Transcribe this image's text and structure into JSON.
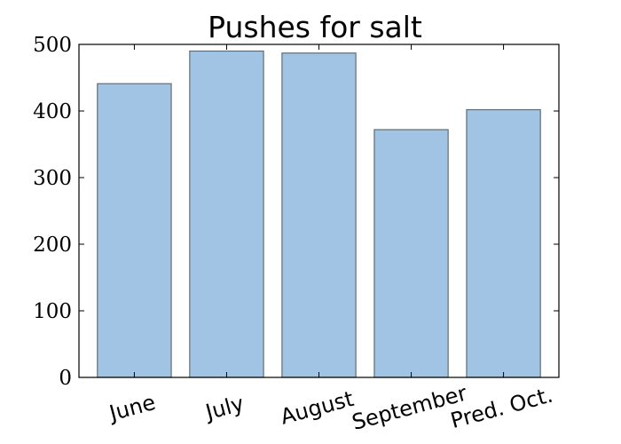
{
  "chart_data": {
    "type": "bar",
    "title": "Pushes for salt",
    "categories": [
      "June",
      "July",
      "August",
      "September",
      "Pred. Oct."
    ],
    "values": [
      441,
      490,
      487,
      372,
      402
    ],
    "ylim": [
      0,
      500
    ],
    "yticks": [
      0,
      100,
      200,
      300,
      400,
      500
    ],
    "xlabel": "",
    "ylabel": "",
    "grid": false,
    "bar_color": "#a1c3e4",
    "bar_edge_color": "#5e6e7a"
  }
}
